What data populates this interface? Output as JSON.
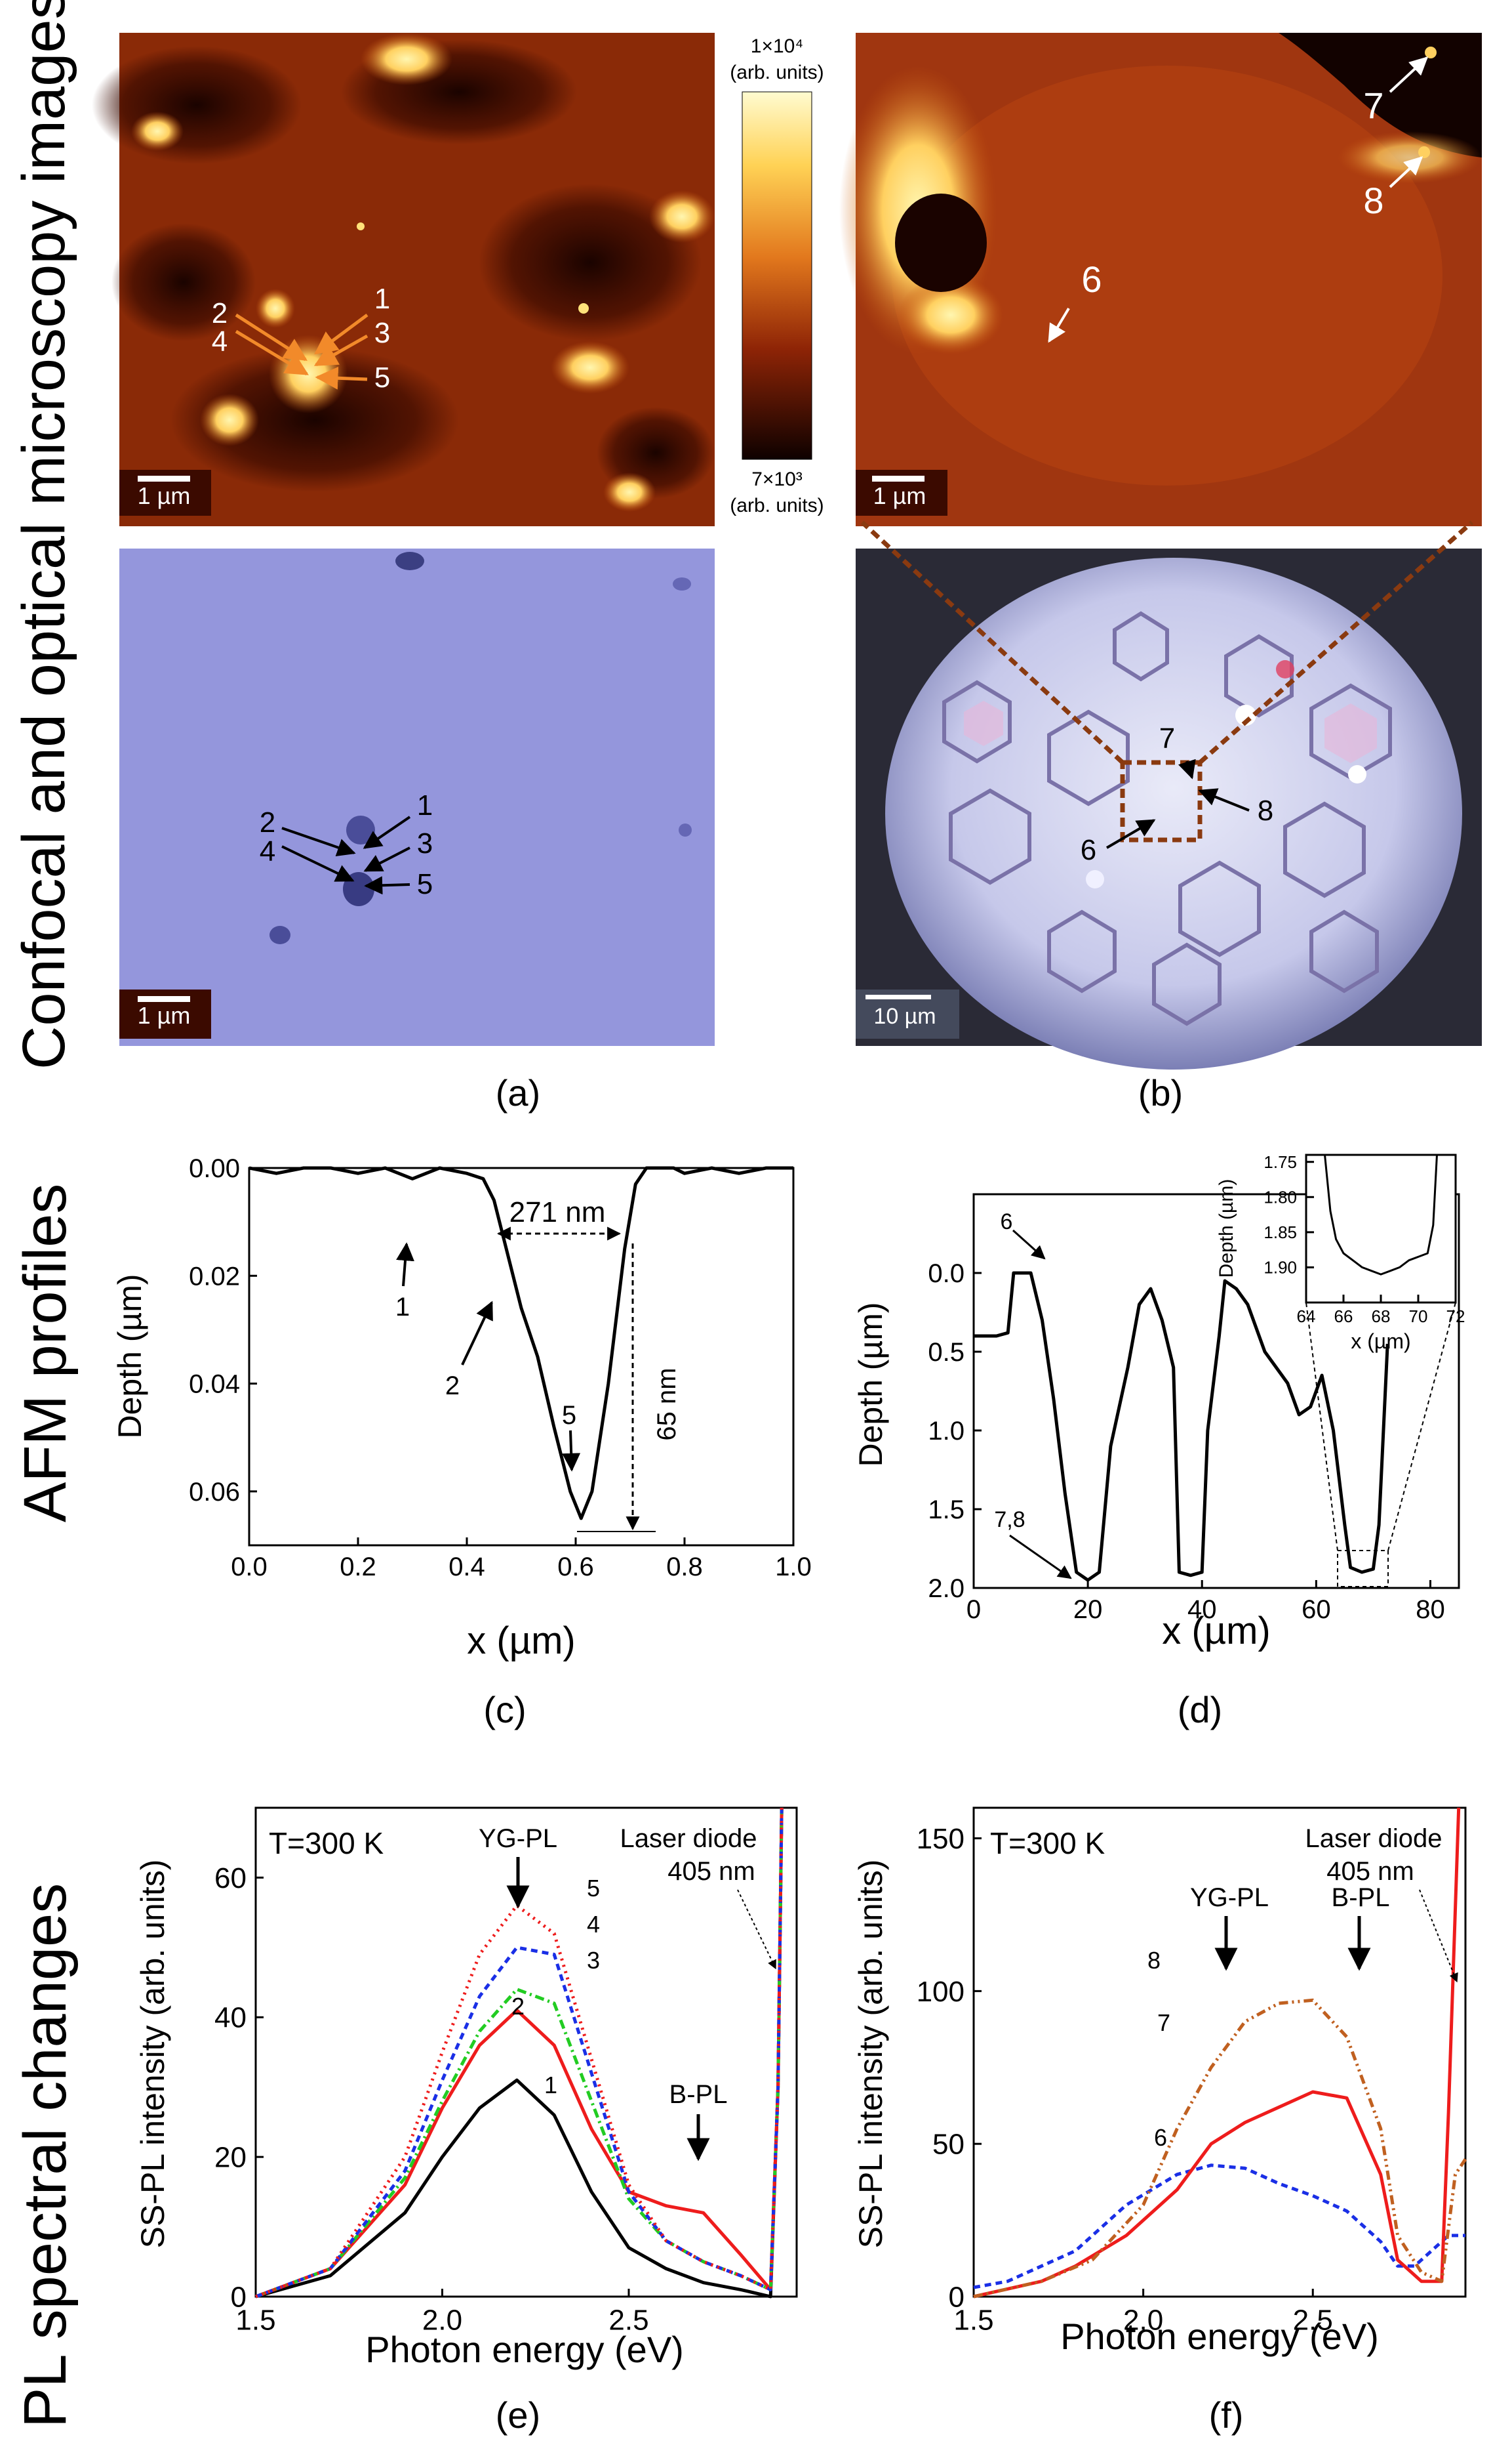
{
  "row_labels": {
    "top": "Confocal and optical microscopy images",
    "middle": "AFM profiles",
    "bottom": "PL spectral changes"
  },
  "panel_labels": [
    "(a)",
    "(b)",
    "(c)",
    "(d)",
    "(e)",
    "(f)"
  ],
  "colorbar": {
    "max": "1×10⁴",
    "min": "7×10³",
    "units": "(arb. units)"
  },
  "scalebars": {
    "a_confocal": "1 µm",
    "b_confocal": "1 µm",
    "a_optical": "1 µm",
    "b_optical": "10 µm"
  },
  "markers": {
    "a": [
      "1",
      "2",
      "3",
      "4",
      "5"
    ],
    "b": [
      "6",
      "7",
      "8"
    ]
  },
  "colors": {
    "confocal_dark": "#2a0700",
    "confocal_mid": "#b5420c",
    "confocal_bright": "#ffe27a",
    "optical_a": "#8d8fd8",
    "optical_b": "#c9cdf0",
    "orange_arrow": "#f28a2a",
    "red": "#ee1c1c",
    "blue": "#1a2fe6",
    "green": "#22cc22",
    "brown": "#c06020",
    "black": "#000000"
  },
  "chart_data": [
    {
      "id": "c",
      "type": "line",
      "xlabel": "x (µm)",
      "ylabel": "Depth (µm)",
      "xlim": [
        0.0,
        1.0
      ],
      "ylim": [
        0.0,
        0.07
      ],
      "y_inverted": true,
      "xticks": [
        "0.0",
        "0.2",
        "0.4",
        "0.6",
        "0.8",
        "1.0"
      ],
      "yticks": [
        "0.00",
        "0.02",
        "0.04",
        "0.06"
      ],
      "annotations": [
        "271 nm",
        "65 nm",
        "1",
        "2",
        "5"
      ],
      "series": [
        {
          "x": [
            0.0,
            0.05,
            0.1,
            0.15,
            0.2,
            0.25,
            0.3,
            0.35,
            0.4,
            0.43,
            0.45,
            0.48,
            0.5,
            0.53,
            0.56,
            0.59,
            0.61,
            0.63,
            0.66,
            0.69,
            0.71,
            0.73,
            0.75,
            0.78,
            0.8,
            0.85,
            0.9,
            0.95,
            1.0
          ],
          "y": [
            0.0,
            0.001,
            0.0,
            0.0,
            0.001,
            0.0,
            0.002,
            0.0,
            0.001,
            0.002,
            0.006,
            0.018,
            0.026,
            0.035,
            0.048,
            0.06,
            0.065,
            0.06,
            0.04,
            0.015,
            0.003,
            0.0,
            -0.001,
            0.0,
            0.001,
            0.0,
            0.001,
            0.0,
            0.0
          ]
        }
      ]
    },
    {
      "id": "d",
      "type": "line",
      "xlabel": "x (µm)",
      "ylabel": "Depth (µm)",
      "xlim": [
        0,
        85
      ],
      "ylim": [
        -0.5,
        2.0
      ],
      "y_inverted": true,
      "xticks": [
        "0",
        "20",
        "40",
        "60",
        "80"
      ],
      "yticks": [
        "0.0",
        "0.5",
        "1.0",
        "1.5",
        "2.0"
      ],
      "annotations": [
        "6",
        "7,8"
      ],
      "series": [
        {
          "x": [
            0,
            4,
            6,
            7,
            10,
            12,
            14,
            16,
            18,
            20,
            22,
            24,
            27,
            29,
            31,
            33,
            35,
            36,
            38,
            40,
            41,
            43,
            44,
            46,
            48,
            51,
            53,
            55,
            57,
            59,
            61,
            63,
            65,
            66,
            68,
            70,
            71,
            72.5
          ],
          "y": [
            0.4,
            0.4,
            0.38,
            0.0,
            0.0,
            0.3,
            0.8,
            1.4,
            1.9,
            1.95,
            1.9,
            1.1,
            0.6,
            0.2,
            0.1,
            0.3,
            0.6,
            1.9,
            1.92,
            1.9,
            1.0,
            0.4,
            0.05,
            0.1,
            0.2,
            0.5,
            0.6,
            0.7,
            0.9,
            0.85,
            0.65,
            1.0,
            1.6,
            1.87,
            1.9,
            1.88,
            1.6,
            0.45
          ]
        }
      ]
    },
    {
      "id": "d-inset",
      "type": "line",
      "xlabel": "x (µm)",
      "ylabel": "Depth (µm)",
      "xlim": [
        64,
        72
      ],
      "ylim": [
        1.74,
        1.95
      ],
      "y_inverted": true,
      "xticks": [
        "64",
        "66",
        "68",
        "70",
        "72"
      ],
      "yticks": [
        "1.75",
        "1.80",
        "1.85",
        "1.90"
      ],
      "series": [
        {
          "x": [
            65.0,
            65.3,
            65.6,
            66.0,
            66.5,
            67.0,
            67.5,
            68.0,
            68.5,
            69.0,
            69.5,
            70.0,
            70.5,
            70.8,
            71.0
          ],
          "y": [
            1.72,
            1.82,
            1.86,
            1.88,
            1.89,
            1.9,
            1.905,
            1.91,
            1.905,
            1.9,
            1.89,
            1.885,
            1.88,
            1.84,
            1.72
          ]
        }
      ]
    },
    {
      "id": "e",
      "type": "line",
      "xlabel": "Photon energy (eV)",
      "ylabel": "SS-PL intensity (arb. units)",
      "xlim": [
        1.5,
        2.95
      ],
      "ylim": [
        0,
        70
      ],
      "xticks": [
        "1.5",
        "2.0",
        "2.5"
      ],
      "yticks": [
        "0",
        "20",
        "40",
        "60"
      ],
      "annotations": [
        "T=300 K",
        "YG-PL",
        "B-PL",
        "Laser diode",
        "405 nm"
      ],
      "series": [
        {
          "name": "1",
          "color": "#000000",
          "dash": "",
          "x": [
            1.5,
            1.7,
            1.9,
            2.0,
            2.1,
            2.2,
            2.3,
            2.4,
            2.5,
            2.6,
            2.7,
            2.8,
            2.88,
            2.9,
            2.91
          ],
          "y": [
            0,
            3,
            12,
            20,
            27,
            31,
            26,
            15,
            7,
            4,
            2,
            1,
            0,
            30,
            70
          ]
        },
        {
          "name": "2",
          "color": "#ee1c1c",
          "dash": "",
          "x": [
            1.5,
            1.7,
            1.9,
            2.0,
            2.1,
            2.2,
            2.3,
            2.4,
            2.5,
            2.6,
            2.7,
            2.8,
            2.88,
            2.9,
            2.91
          ],
          "y": [
            0,
            4,
            16,
            27,
            36,
            41,
            36,
            24,
            15,
            13,
            12,
            6,
            1,
            30,
            70
          ]
        },
        {
          "name": "3",
          "color": "#22cc22",
          "dash": "14 6 3 6",
          "x": [
            1.5,
            1.7,
            1.9,
            2.0,
            2.1,
            2.2,
            2.3,
            2.4,
            2.5,
            2.6,
            2.7,
            2.8,
            2.88,
            2.9,
            2.91
          ],
          "y": [
            0,
            4,
            17,
            28,
            38,
            44,
            42,
            28,
            14,
            8,
            5,
            3,
            1,
            30,
            70
          ]
        },
        {
          "name": "4",
          "color": "#1a2fe6",
          "dash": "10 7",
          "x": [
            1.5,
            1.7,
            1.9,
            2.0,
            2.1,
            2.2,
            2.3,
            2.4,
            2.5,
            2.6,
            2.7,
            2.8,
            2.88,
            2.9,
            2.91
          ],
          "y": [
            0,
            4,
            18,
            31,
            43,
            50,
            49,
            32,
            15,
            8,
            5,
            3,
            1,
            30,
            70
          ]
        },
        {
          "name": "5",
          "color": "#ee1c1c",
          "dash": "3 7",
          "x": [
            1.5,
            1.7,
            1.9,
            2.0,
            2.1,
            2.2,
            2.3,
            2.4,
            2.5,
            2.6,
            2.7,
            2.8,
            2.88,
            2.9,
            2.91
          ],
          "y": [
            0,
            4,
            20,
            35,
            49,
            56,
            52,
            34,
            16,
            8,
            5,
            3,
            1,
            30,
            70
          ]
        }
      ]
    },
    {
      "id": "f",
      "type": "line",
      "xlabel": "Photon energy (eV)",
      "ylabel": "SS-PL intensity (arb. units)",
      "xlim": [
        1.5,
        2.95
      ],
      "ylim": [
        0,
        160
      ],
      "xticks": [
        "1.5",
        "2.0",
        "2.5"
      ],
      "yticks": [
        "0",
        "50",
        "100",
        "150"
      ],
      "annotations": [
        "T=300 K",
        "YG-PL",
        "B-PL",
        "Laser diode",
        "405 nm"
      ],
      "series": [
        {
          "name": "6",
          "color": "#1a2fe6",
          "dash": "10 7",
          "x": [
            1.5,
            1.6,
            1.8,
            1.95,
            2.1,
            2.2,
            2.3,
            2.4,
            2.5,
            2.6,
            2.7,
            2.75,
            2.8,
            2.85,
            2.9,
            2.95
          ],
          "y": [
            3,
            5,
            15,
            30,
            40,
            43,
            42,
            37,
            33,
            28,
            18,
            10,
            10,
            15,
            20,
            20
          ]
        },
        {
          "name": "7",
          "color": "#ee1c1c",
          "dash": "",
          "x": [
            1.5,
            1.7,
            1.8,
            1.95,
            2.1,
            2.2,
            2.3,
            2.4,
            2.5,
            2.6,
            2.7,
            2.75,
            2.82,
            2.88,
            2.9,
            2.93
          ],
          "y": [
            0,
            5,
            10,
            20,
            35,
            50,
            57,
            62,
            67,
            65,
            40,
            12,
            5,
            5,
            60,
            160
          ]
        },
        {
          "name": "8",
          "color": "#c06020",
          "dash": "14 6 3 6 3 6",
          "x": [
            1.5,
            1.7,
            1.85,
            2.0,
            2.1,
            2.2,
            2.3,
            2.4,
            2.5,
            2.6,
            2.7,
            2.75,
            2.82,
            2.88,
            2.92,
            2.95
          ],
          "y": [
            0,
            5,
            12,
            30,
            55,
            75,
            90,
            96,
            97,
            85,
            55,
            20,
            8,
            5,
            40,
            45
          ]
        }
      ]
    }
  ]
}
